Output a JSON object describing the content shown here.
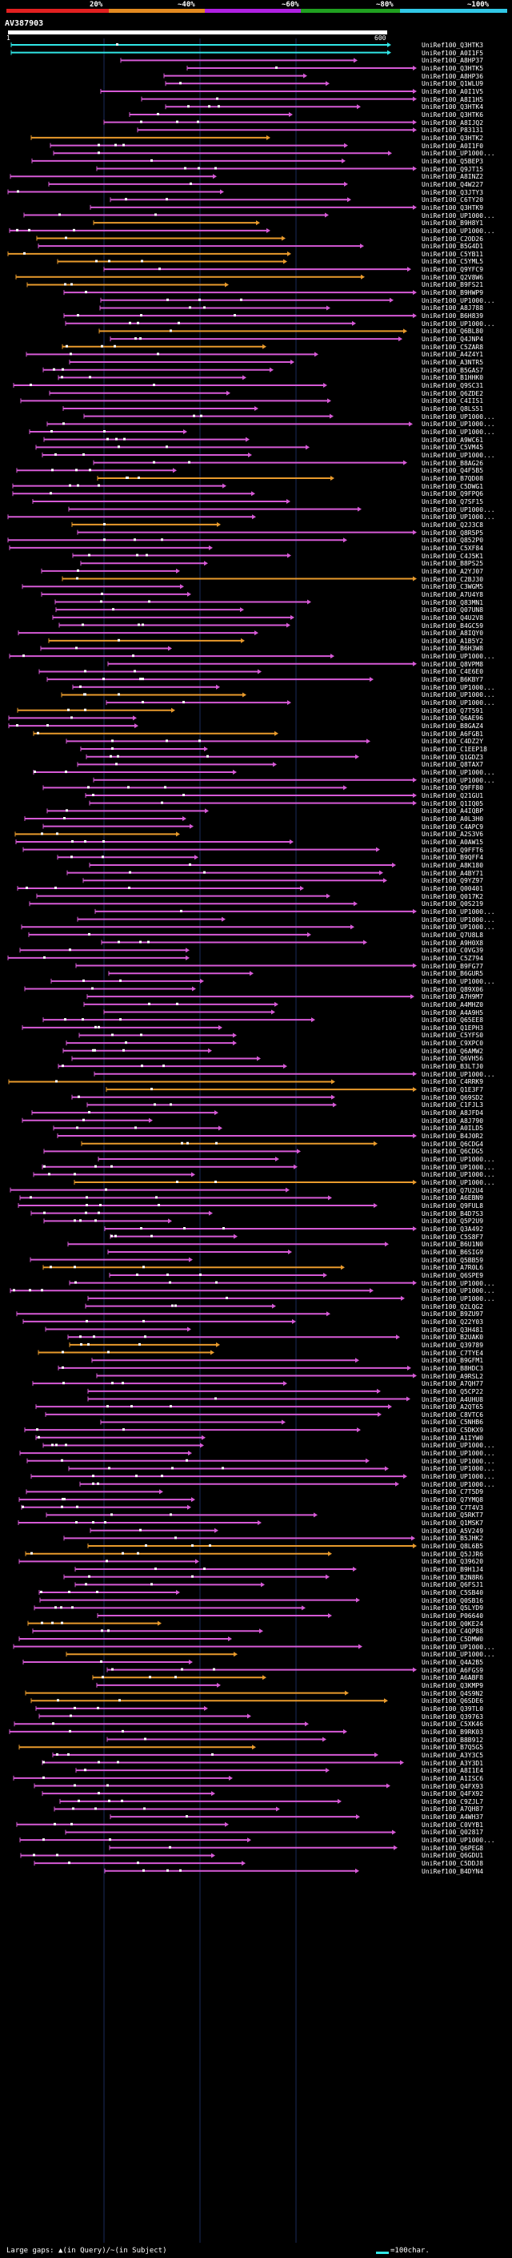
{
  "header": {
    "percent_labels": [
      "20%",
      "~40%",
      "~60%",
      "~80%",
      "~100%"
    ],
    "band_colors": [
      "#e32020",
      "#e38a20",
      "#b020e3",
      "#20a020",
      "#31c8e6"
    ],
    "query_title": "AV387903",
    "query_start": "1",
    "query_end": "600"
  },
  "colors": {
    "query": "#ffffff",
    "top_hit": "#31e6e6",
    "hit": "#d65ad6",
    "hit_orange": "#e89a2c",
    "gap": "#ffffff",
    "grid": "#1a2a5a"
  },
  "hits": [
    "UniRef100_Q3HTK3",
    "UniRef100_A0I1F5",
    "UniRef100_A8HP37",
    "UniRef100_Q3HTK5",
    "UniRef100_A8HP36",
    "UniRef100_Q1WLU9",
    "UniRef100_A0I1V5",
    "UniRef100_A8I1H5",
    "UniRef100_Q3HTK4",
    "UniRef100_Q3HTK6",
    "UniRef100_A8IJQ2",
    "UniRef100_P83131",
    "UniRef100_Q3HTK2",
    "UniRef100_A0I1F0",
    "UniRef100_UP1000...",
    "UniRef100_Q5BEP3",
    "UniRef100_Q9JT15",
    "UniRef100_A8INZ2",
    "UniRef100_Q4W227",
    "UniRef100_Q3JTY3",
    "UniRef100_C6TY20",
    "UniRef100_Q3HTK9",
    "UniRef100_UP1000...",
    "UniRef100_B9H8Y1",
    "UniRef100_UP1000...",
    "UniRef100_C2OD26",
    "UniRef100_B5G4D1",
    "UniRef100_C5YB11",
    "UniRef100_C5YML5",
    "UniRef100_Q9YFC9",
    "UniRef100_Q2V8W6",
    "UniRef100_B9FS21",
    "UniRef100_B9HWP9",
    "UniRef100_UP1000...",
    "UniRef100_A8J788",
    "UniRef100_B6H839",
    "UniRef100_UP1000...",
    "UniRef100_Q6BL80",
    "UniRef100_Q4JNP4",
    "UniRef100_C5ZAR8",
    "UniRef100_A4Z4Y1",
    "UniRef100_A3NTR5",
    "UniRef100_B5GAS7",
    "UniRef100_B1HHK0",
    "UniRef100_Q9SC31",
    "UniRef100_Q6ZDE2",
    "UniRef100_C4IIS1",
    "UniRef100_Q8LS51",
    "UniRef100_UP1000...",
    "UniRef100_UP1000...",
    "UniRef100_UP1000...",
    "UniRef100_A9WC61",
    "UniRef100_C5VM45",
    "UniRef100_UP1000...",
    "UniRef100_B8AG26",
    "UniRef100_Q4F5B5",
    "UniRef100_B7QD08",
    "UniRef100_C5DWG1",
    "UniRef100_Q9FPQ6",
    "UniRef100_Q7SF15",
    "UniRef100_UP1000...",
    "UniRef100_UP1000...",
    "UniRef100_Q2J3C8",
    "UniRef100_Q8R5P5",
    "UniRef100_Q852P0",
    "UniRef100_C5XF84",
    "UniRef100_C4J5K1",
    "UniRef100_B8PS25",
    "UniRef100_A2YJ07",
    "UniRef100_C2BJ30",
    "UniRef100_C3WGM5",
    "UniRef100_A7U4Y8",
    "UniRef100_Q83MN1",
    "UniRef100_Q07UN8",
    "UniRef100_Q4U2V8",
    "UniRef100_B4GC59",
    "UniRef100_A8IQY0",
    "UniRef100_A1B5Y2",
    "UniRef100_B6H3W8",
    "UniRef100_UP1000...",
    "UniRef100_Q8VPM8",
    "UniRef100_C4E6E0",
    "UniRef100_B6KBY7",
    "UniRef100_UP1000...",
    "UniRef100_UP1000...",
    "UniRef100_UP1000...",
    "UniRef100_Q7T591",
    "UniRef100_Q6AE96",
    "UniRef100_B8GAZ4",
    "UniRef100_A6FGB1",
    "UniRef100_C4DZ2Y",
    "UniRef100_C1EEP18",
    "UniRef100_Q1GDZ3",
    "UniRef100_Q8TAX7",
    "UniRef100_UP1000...",
    "UniRef100_UP1000...",
    "UniRef100_Q9FF80",
    "UniRef100_Q21GU1",
    "UniRef100_Q1IQ05",
    "UniRef100_A4IQBP",
    "UniRef100_A0L3H0",
    "UniRef100_C4APC9",
    "UniRef100_A2S3V6",
    "UniRef100_A0AW15",
    "UniRef100_Q9FFT6",
    "UniRef100_B9QFF4",
    "UniRef100_A8K180",
    "UniRef100_A4BY71",
    "UniRef100_Q9YZ97",
    "UniRef100_Q00401",
    "UniRef100_Q017K2",
    "UniRef100_Q0S219",
    "UniRef100_UP1000...",
    "UniRef100_UP1000...",
    "UniRef100_UP1000...",
    "UniRef100_Q7U8L8",
    "UniRef100_A9H0X8",
    "UniRef100_C0VG39",
    "UniRef100_C5Z794",
    "UniRef100_B9FG77",
    "UniRef100_B6GUR5",
    "UniRef100_UP1000...",
    "UniRef100_Q89X06",
    "UniRef100_A7H9M7",
    "UniRef100_A4MHZ0",
    "UniRef100_A4A9H5",
    "UniRef100_Q65EE8",
    "UniRef100_Q1EPH3",
    "UniRef100_C5YFS0",
    "UniRef100_C9XPC0",
    "UniRef100_Q6AMW2",
    "UniRef100_Q6VH56",
    "UniRef100_B3LTJ0",
    "UniRef100_UP1000...",
    "UniRef100_C4RRK9",
    "UniRef100_Q1E3F7",
    "UniRef100_Q69SD2",
    "UniRef100_C1FJL3",
    "UniRef100_A8JFD4",
    "UniRef100_A8J790",
    "UniRef100_A0ILD5",
    "UniRef100_B4J0R2",
    "UniRef100_Q6CDG4",
    "UniRef100_Q6CDG5",
    "UniRef100_UP1000...",
    "UniRef100_UP1000...",
    "UniRef100_UP1000...",
    "UniRef100_UP1000...",
    "UniRef100_Q7U2U4",
    "UniRef100_A6EBN9",
    "UniRef100_Q9FUL8",
    "UniRef100_B4D7S3",
    "UniRef100_Q5P2U9",
    "UniRef100_Q3A492",
    "UniRef100_C5S8F7",
    "UniRef100_B6U1N0",
    "UniRef100_B6SIG9",
    "UniRef100_Q5BB59",
    "UniRef100_A7R0L6",
    "UniRef100_Q6SPE9",
    "UniRef100_UP1000...",
    "UniRef100_UP1000...",
    "UniRef100_UP1000...",
    "UniRef100_Q2LQG2",
    "UniRef100_B9ZU97",
    "UniRef100_Q22Y03",
    "UniRef100_Q3H481",
    "UniRef100_B2UAK0",
    "UniRef100_Q39789",
    "UniRef100_C7TYE4",
    "UniRef100_B9GFM1",
    "UniRef100_B8HDC3",
    "UniRef100_A9RSL2",
    "UniRef100_A7QH77",
    "UniRef100_Q5CP22",
    "UniRef100_A4UHU8",
    "UniRef100_A2QT65",
    "UniRef100_C8VTC6",
    "UniRef100_C5NHB6",
    "UniRef100_C5DKX9",
    "UniRef100_A1IYW0",
    "UniRef100_UP1000...",
    "UniRef100_UP1000...",
    "UniRef100_UP1000...",
    "UniRef100_UP1000...",
    "UniRef100_UP1000...",
    "UniRef100_UP1000...",
    "UniRef100_C7T5D9",
    "UniRef100_Q7YMQ8",
    "UniRef100_C7T4V3",
    "UniRef100_Q5RKT7",
    "UniRef100_Q1MSK7",
    "UniRef100_A5V249",
    "UniRef100_B5JHK2",
    "UniRef100_Q8L6B5",
    "UniRef100_Q5JJR6",
    "UniRef100_Q39620",
    "UniRef100_B9H1J4",
    "UniRef100_B2N8R6",
    "UniRef100_Q6FSJ1",
    "UniRef100_C5SB40",
    "UniRef100_Q0SB16",
    "UniRef100_Q5LYD9",
    "UniRef100_P06640",
    "UniRef100_Q0KE24",
    "UniRef100_C4QP88",
    "UniRef100_C5DMW0",
    "UniRef100_UP1000...",
    "UniRef100_UP1000...",
    "UniRef100_Q4A2B5",
    "UniRef100_A6FGS9",
    "UniRef100_A6ABF8",
    "UniRef100_Q3KMP9",
    "UniRef100_Q4S9N2",
    "UniRef100_Q6SDE6",
    "UniRef100_Q39TL0",
    "UniRef100_Q39763",
    "UniRef100_C5XK46",
    "UniRef100_B9RK03",
    "UniRef100_B8B912",
    "UniRef100_B7Q5G5",
    "UniRef100_A3Y3C5",
    "UniRef100_A3Y3D1",
    "UniRef100_A8I1E4",
    "UniRef100_A1ISC6",
    "UniRef100_Q4FX93",
    "UniRef100_Q4FX92",
    "UniRef100_C9ZJL7",
    "UniRef100_A7QH87",
    "UniRef100_A4WH37",
    "UniRef100_C0VYB1",
    "UniRef100_Q02817",
    "UniRef100_UP1000...",
    "UniRef100_Q6PEG8",
    "UniRef100_Q6GDU1",
    "UniRef100_C5DDJ8",
    "UniRef100_B4DYN4"
  ],
  "footer": {
    "large_gaps_label": "Large gaps:",
    "gap_query_symbol": "▲",
    "gap_query_label": "(in Query)",
    "gap_subject_symbol": "/~",
    "gap_subject_label": "(in Subject)",
    "scale_label": "=100char."
  }
}
